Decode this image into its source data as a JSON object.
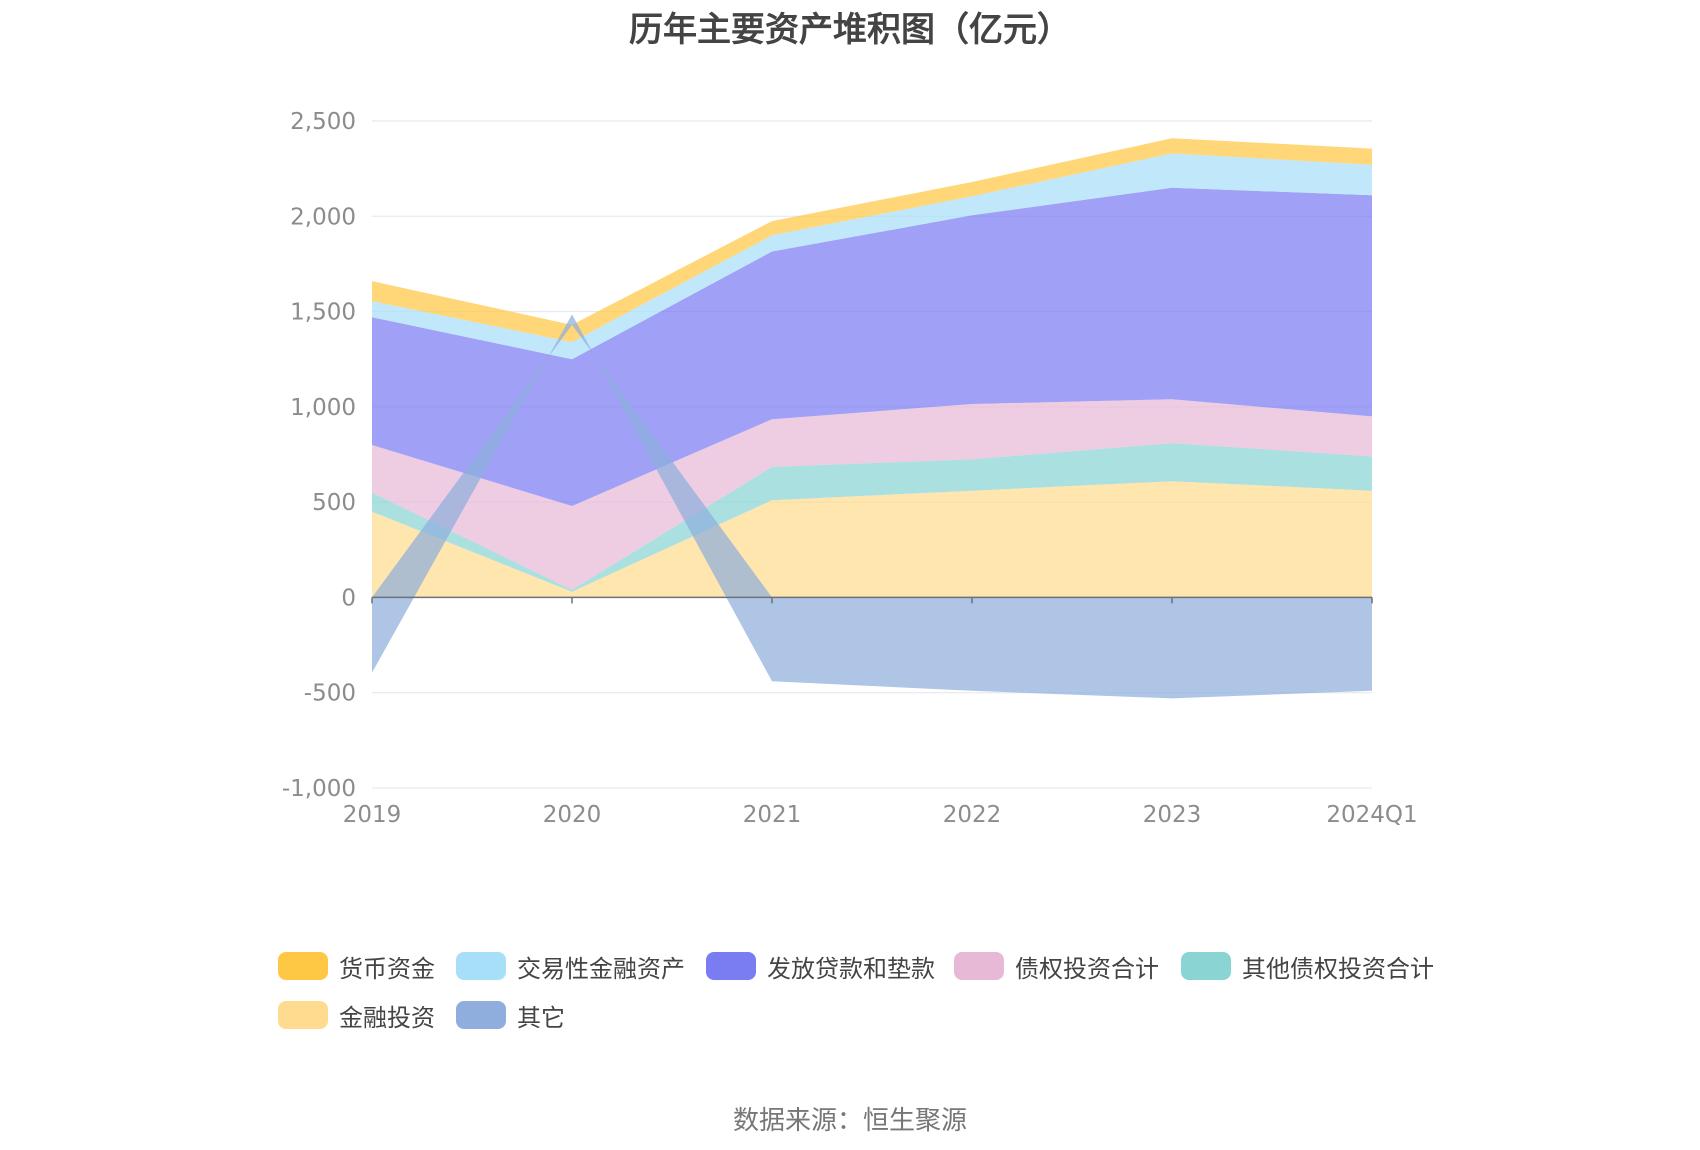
{
  "chart_data": {
    "type": "area",
    "title": "历年主要资产堆积图（亿元）",
    "source": "数据来源：恒生聚源",
    "x": [
      "2019",
      "2020",
      "2021",
      "2022",
      "2023",
      "2024Q1"
    ],
    "ylim": [
      -1000,
      2500
    ],
    "yticks": [
      -1000,
      -500,
      0,
      500,
      1000,
      1500,
      2000,
      2500
    ],
    "ytick_labels": [
      "-1,000",
      "-500",
      "0",
      "500",
      "1,000",
      "1,500",
      "2,000",
      "2,500"
    ],
    "grid": true,
    "legend_position": "bottom",
    "series": [
      {
        "name": "金融投资",
        "color": "#FFDB8F",
        "values": [
          450,
          30,
          510,
          560,
          610,
          560
        ]
      },
      {
        "name": "其他债权投资合计",
        "color": "#8AD4D4",
        "values": [
          100,
          10,
          175,
          165,
          200,
          180
        ]
      },
      {
        "name": "债权投资合计",
        "color": "#E7B9D7",
        "values": [
          250,
          440,
          250,
          290,
          230,
          210
        ]
      },
      {
        "name": "发放贷款和垫款",
        "color": "#7A7CF2",
        "values": [
          670,
          770,
          880,
          990,
          1110,
          1160
        ]
      },
      {
        "name": "交易性金融资产",
        "color": "#A8DFF8",
        "values": [
          85,
          90,
          85,
          100,
          180,
          160
        ]
      },
      {
        "name": "货币资金",
        "color": "#FFC844",
        "values": [
          105,
          90,
          75,
          75,
          80,
          85
        ]
      },
      {
        "name": "其它",
        "color": "#8FAEDD",
        "values": [
          -395,
          55,
          -440,
          -490,
          -530,
          -490
        ]
      }
    ],
    "legend_order": [
      "货币资金",
      "交易性金融资产",
      "发放贷款和垫款",
      "债权投资合计",
      "其他债权投资合计",
      "金融投资",
      "其它"
    ]
  }
}
